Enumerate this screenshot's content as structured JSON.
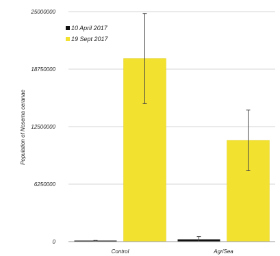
{
  "chart_data": {
    "type": "bar",
    "title": "",
    "xlabel": "",
    "ylabel": "Population of Nosema ceranae",
    "ylim": [
      0,
      25000000
    ],
    "yticks": [
      0,
      6250000,
      12500000,
      18750000,
      25000000
    ],
    "ytick_labels": [
      "0",
      "6250000",
      "12500000",
      "18750000",
      "25000000"
    ],
    "grid": true,
    "legend_position": "top-left",
    "categories": [
      "Control",
      "AgriSea"
    ],
    "series": [
      {
        "name": "10 April 2017",
        "color": "#111111",
        "values": [
          80000,
          250000
        ],
        "errors": [
          50000,
          300000
        ]
      },
      {
        "name": "19 Sept 2017",
        "color": "#f3e12f",
        "values": [
          19900000,
          11000000
        ],
        "errors": [
          4900000,
          3300000
        ]
      }
    ]
  }
}
